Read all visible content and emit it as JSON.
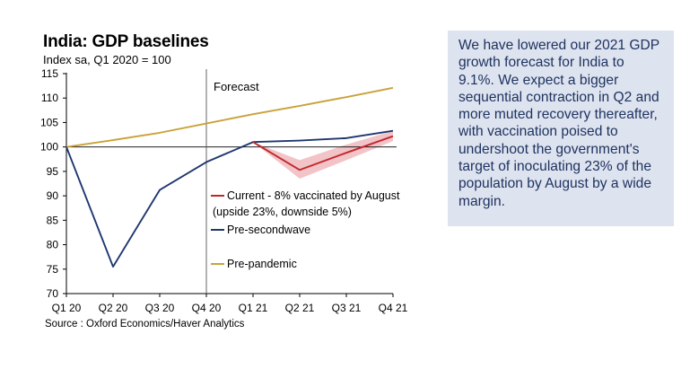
{
  "chart_data": {
    "type": "line",
    "title": "India: GDP baselines",
    "subtitle": "Index sa, Q1 2020 = 100",
    "source": "Source : Oxford Economics/Haver Analytics",
    "categories": [
      "Q1 20",
      "Q2 20",
      "Q3 20",
      "Q4 20",
      "Q1 21",
      "Q2 21",
      "Q3 21",
      "Q4 21"
    ],
    "ylim": [
      70,
      115
    ],
    "yticks": [
      "70",
      "75",
      "80",
      "85",
      "90",
      "95",
      "100",
      "105",
      "110",
      "115"
    ],
    "forecast_label": "Forecast",
    "forecast_start": "Q4 20",
    "reference_line": 100,
    "series": [
      {
        "name": "Current - 8% vaccinated by August",
        "legend_line2": "(upside 23%, downside 5%)",
        "color": "#c0282d",
        "x": [
          "Q1 21",
          "Q2 21",
          "Q3 21",
          "Q4 21"
        ],
        "values": [
          101.0,
          95.3,
          98.8,
          102.2
        ],
        "band_upper": [
          101.0,
          97.3,
          100.5,
          103.3
        ],
        "band_lower": [
          101.0,
          93.5,
          97.3,
          101.2
        ],
        "band_color": "#f2c4c7"
      },
      {
        "name": "Pre-secondwave",
        "color": "#1f3770",
        "values": [
          100,
          75.5,
          91.2,
          96.9,
          101.0,
          101.3,
          101.8,
          103.3
        ]
      },
      {
        "name": "Pre-pandemic",
        "color": "#c9a23a",
        "values": [
          100,
          101.4,
          102.9,
          104.8,
          106.7,
          108.4,
          110.2,
          112.1
        ]
      }
    ]
  },
  "commentary": {
    "text": "We have lowered our 2021 GDP growth forecast for India to 9.1%. We expect a bigger sequential contraction in Q2 and more muted recovery thereafter, with vaccination poised to undershoot the government's target of inoculating 23% of the population by August by a wide margin."
  }
}
